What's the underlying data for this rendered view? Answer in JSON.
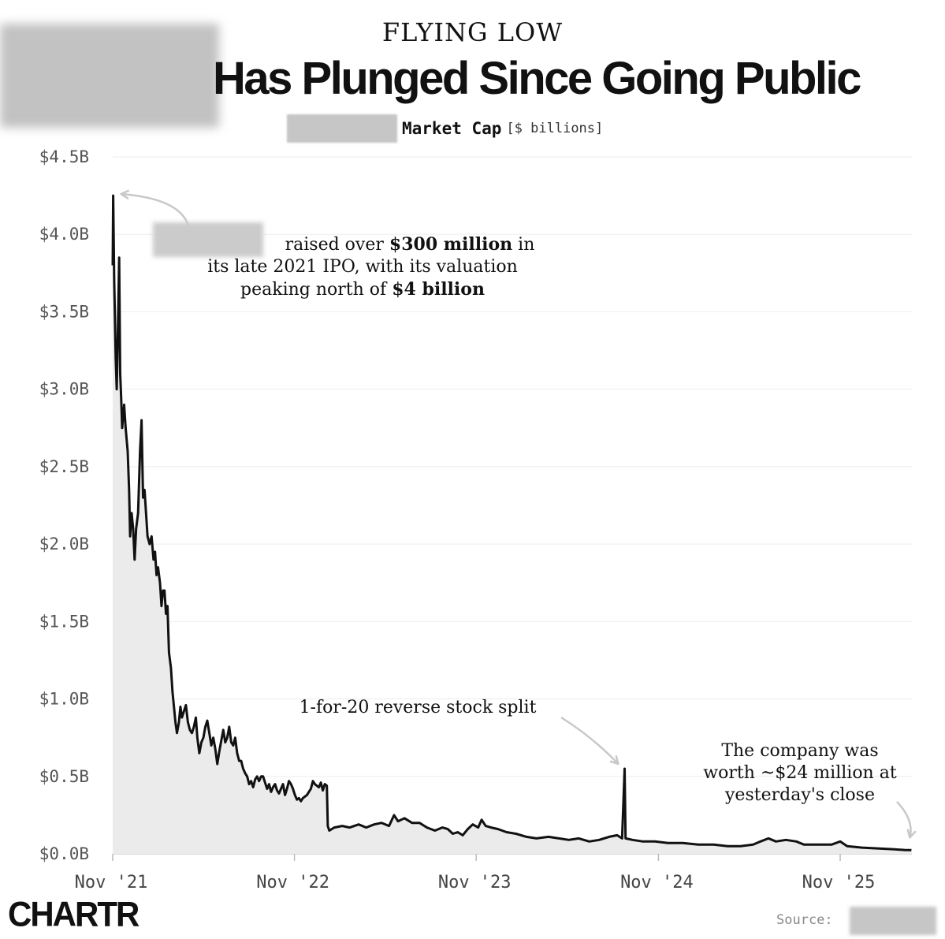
{
  "header": {
    "kicker": "FLYING LOW",
    "title": "Has Plunged Since Going Public",
    "subtitle_main": "Market Cap",
    "subtitle_unit": "[$ billions]"
  },
  "annotations": {
    "ipo_line1_text": "raised over ",
    "ipo_line1_bold": "$300 million",
    "ipo_line1_tail": " in",
    "ipo_line2": "its late 2021 IPO, with its valuation",
    "ipo_line3_text": "peaking north of ",
    "ipo_line3_bold": "$4 billion",
    "split": "1-for-20 reverse stock split",
    "now_line1": "The company was",
    "now_line2": "worth ~$24 million at",
    "now_line3": "yesterday's close"
  },
  "footer": {
    "brand": "CHARTR",
    "source_label": "Source:"
  },
  "colors": {
    "line": "#111111",
    "area": "#ebebeb",
    "grid": "#eeeeee",
    "arrow": "#c8c8c8"
  },
  "chart_data": {
    "type": "area",
    "title": "Has Plunged Since Going Public",
    "ylabel": "Market Cap [$ billions]",
    "ylim": [
      0,
      4.5
    ],
    "yticks": [
      0,
      0.5,
      1.0,
      1.5,
      2.0,
      2.5,
      3.0,
      3.5,
      4.0,
      4.5
    ],
    "ytick_labels": [
      "$0.0B",
      "$0.5B",
      "$1.0B",
      "$1.5B",
      "$2.0B",
      "$2.5B",
      "$3.0B",
      "$3.5B",
      "$4.0B",
      "$4.5B"
    ],
    "xlim": [
      "2021-11-01",
      "2026-03-25"
    ],
    "xticks": [
      "2021-11-01",
      "2022-11-01",
      "2023-11-01",
      "2024-11-01",
      "2025-11-01"
    ],
    "xtick_labels": [
      "Nov '21",
      "Nov '22",
      "Nov '23",
      "Nov '24",
      "Nov '25"
    ],
    "grid": true,
    "series": [
      {
        "points": [
          [
            "2021-11-01",
            3.8
          ],
          [
            "2021-11-02",
            4.25
          ],
          [
            "2021-11-04",
            3.7
          ],
          [
            "2021-11-07",
            3.2
          ],
          [
            "2021-11-09",
            3.0
          ],
          [
            "2021-11-11",
            3.3
          ],
          [
            "2021-11-14",
            3.85
          ],
          [
            "2021-11-16",
            3.1
          ],
          [
            "2021-11-18",
            2.95
          ],
          [
            "2021-11-20",
            2.75
          ],
          [
            "2021-11-24",
            2.9
          ],
          [
            "2021-11-27",
            2.75
          ],
          [
            "2021-12-01",
            2.6
          ],
          [
            "2021-12-04",
            2.35
          ],
          [
            "2021-12-06",
            2.05
          ],
          [
            "2021-12-09",
            2.2
          ],
          [
            "2021-12-12",
            2.1
          ],
          [
            "2021-12-15",
            1.9
          ],
          [
            "2021-12-18",
            2.1
          ],
          [
            "2021-12-22",
            2.2
          ],
          [
            "2021-12-26",
            2.6
          ],
          [
            "2021-12-29",
            2.8
          ],
          [
            "2022-01-01",
            2.3
          ],
          [
            "2022-01-04",
            2.35
          ],
          [
            "2022-01-07",
            2.2
          ],
          [
            "2022-01-10",
            2.05
          ],
          [
            "2022-01-14",
            2.0
          ],
          [
            "2022-01-18",
            2.05
          ],
          [
            "2022-01-22",
            1.9
          ],
          [
            "2022-01-25",
            1.95
          ],
          [
            "2022-01-28",
            1.8
          ],
          [
            "2022-01-31",
            1.85
          ],
          [
            "2022-02-04",
            1.75
          ],
          [
            "2022-02-07",
            1.6
          ],
          [
            "2022-02-10",
            1.7
          ],
          [
            "2022-02-13",
            1.7
          ],
          [
            "2022-02-16",
            1.55
          ],
          [
            "2022-02-19",
            1.6
          ],
          [
            "2022-02-22",
            1.3
          ],
          [
            "2022-02-26",
            1.2
          ],
          [
            "2022-03-01",
            1.05
          ],
          [
            "2022-03-04",
            0.95
          ],
          [
            "2022-03-07",
            0.85
          ],
          [
            "2022-03-10",
            0.78
          ],
          [
            "2022-03-14",
            0.85
          ],
          [
            "2022-03-17",
            0.95
          ],
          [
            "2022-03-20",
            0.88
          ],
          [
            "2022-03-24",
            0.92
          ],
          [
            "2022-03-28",
            0.96
          ],
          [
            "2022-04-01",
            0.85
          ],
          [
            "2022-04-05",
            0.8
          ],
          [
            "2022-04-09",
            0.78
          ],
          [
            "2022-04-13",
            0.82
          ],
          [
            "2022-04-17",
            0.88
          ],
          [
            "2022-04-20",
            0.75
          ],
          [
            "2022-04-24",
            0.65
          ],
          [
            "2022-04-28",
            0.72
          ],
          [
            "2022-05-02",
            0.75
          ],
          [
            "2022-05-06",
            0.82
          ],
          [
            "2022-05-10",
            0.86
          ],
          [
            "2022-05-14",
            0.78
          ],
          [
            "2022-05-18",
            0.7
          ],
          [
            "2022-05-22",
            0.75
          ],
          [
            "2022-05-26",
            0.68
          ],
          [
            "2022-05-30",
            0.58
          ],
          [
            "2022-06-03",
            0.66
          ],
          [
            "2022-06-07",
            0.73
          ],
          [
            "2022-06-11",
            0.8
          ],
          [
            "2022-06-15",
            0.72
          ],
          [
            "2022-06-19",
            0.75
          ],
          [
            "2022-06-23",
            0.82
          ],
          [
            "2022-06-27",
            0.72
          ],
          [
            "2022-07-01",
            0.7
          ],
          [
            "2022-07-05",
            0.75
          ],
          [
            "2022-07-09",
            0.65
          ],
          [
            "2022-07-13",
            0.6
          ],
          [
            "2022-07-17",
            0.6
          ],
          [
            "2022-07-21",
            0.55
          ],
          [
            "2022-07-25",
            0.52
          ],
          [
            "2022-07-29",
            0.5
          ],
          [
            "2022-08-02",
            0.45
          ],
          [
            "2022-08-06",
            0.47
          ],
          [
            "2022-08-10",
            0.43
          ],
          [
            "2022-08-14",
            0.48
          ],
          [
            "2022-08-18",
            0.5
          ],
          [
            "2022-08-22",
            0.47
          ],
          [
            "2022-08-26",
            0.5
          ],
          [
            "2022-08-30",
            0.5
          ],
          [
            "2022-09-03",
            0.46
          ],
          [
            "2022-09-07",
            0.42
          ],
          [
            "2022-09-11",
            0.45
          ],
          [
            "2022-09-15",
            0.4
          ],
          [
            "2022-09-19",
            0.43
          ],
          [
            "2022-09-23",
            0.45
          ],
          [
            "2022-09-27",
            0.41
          ],
          [
            "2022-10-01",
            0.39
          ],
          [
            "2022-10-05",
            0.42
          ],
          [
            "2022-10-09",
            0.45
          ],
          [
            "2022-10-13",
            0.38
          ],
          [
            "2022-10-17",
            0.42
          ],
          [
            "2022-10-21",
            0.47
          ],
          [
            "2022-10-25",
            0.45
          ],
          [
            "2022-10-29",
            0.42
          ],
          [
            "2022-11-02",
            0.38
          ],
          [
            "2022-11-06",
            0.35
          ],
          [
            "2022-11-10",
            0.36
          ],
          [
            "2022-11-14",
            0.34
          ],
          [
            "2022-11-18",
            0.36
          ],
          [
            "2022-11-22",
            0.37
          ],
          [
            "2022-11-26",
            0.38
          ],
          [
            "2022-11-30",
            0.4
          ],
          [
            "2022-12-04",
            0.42
          ],
          [
            "2022-12-08",
            0.47
          ],
          [
            "2022-12-12",
            0.45
          ],
          [
            "2022-12-16",
            0.44
          ],
          [
            "2022-12-20",
            0.43
          ],
          [
            "2022-12-24",
            0.46
          ],
          [
            "2022-12-28",
            0.41
          ],
          [
            "2023-01-01",
            0.45
          ],
          [
            "2023-01-05",
            0.44
          ],
          [
            "2023-01-07",
            0.18
          ],
          [
            "2023-01-10",
            0.15
          ],
          [
            "2023-01-20",
            0.17
          ],
          [
            "2023-02-05",
            0.18
          ],
          [
            "2023-02-20",
            0.17
          ],
          [
            "2023-03-10",
            0.19
          ],
          [
            "2023-03-25",
            0.17
          ],
          [
            "2023-04-10",
            0.19
          ],
          [
            "2023-04-25",
            0.2
          ],
          [
            "2023-05-10",
            0.18
          ],
          [
            "2023-05-20",
            0.25
          ],
          [
            "2023-05-28",
            0.21
          ],
          [
            "2023-06-10",
            0.23
          ],
          [
            "2023-06-25",
            0.2
          ],
          [
            "2023-07-10",
            0.2
          ],
          [
            "2023-07-25",
            0.17
          ],
          [
            "2023-08-10",
            0.15
          ],
          [
            "2023-08-25",
            0.17
          ],
          [
            "2023-09-05",
            0.16
          ],
          [
            "2023-09-15",
            0.13
          ],
          [
            "2023-09-25",
            0.14
          ],
          [
            "2023-10-05",
            0.12
          ],
          [
            "2023-10-15",
            0.16
          ],
          [
            "2023-10-25",
            0.19
          ],
          [
            "2023-11-05",
            0.17
          ],
          [
            "2023-11-12",
            0.22
          ],
          [
            "2023-11-20",
            0.18
          ],
          [
            "2023-12-01",
            0.17
          ],
          [
            "2023-12-15",
            0.16
          ],
          [
            "2024-01-01",
            0.14
          ],
          [
            "2024-01-20",
            0.13
          ],
          [
            "2024-02-10",
            0.11
          ],
          [
            "2024-03-01",
            0.1
          ],
          [
            "2024-03-25",
            0.11
          ],
          [
            "2024-04-15",
            0.1
          ],
          [
            "2024-05-05",
            0.09
          ],
          [
            "2024-05-25",
            0.1
          ],
          [
            "2024-06-15",
            0.08
          ],
          [
            "2024-07-05",
            0.09
          ],
          [
            "2024-07-25",
            0.11
          ],
          [
            "2024-08-10",
            0.12
          ],
          [
            "2024-08-20",
            0.1
          ],
          [
            "2024-08-25",
            0.55
          ],
          [
            "2024-08-27",
            0.1
          ],
          [
            "2024-09-10",
            0.09
          ],
          [
            "2024-10-01",
            0.08
          ],
          [
            "2024-10-25",
            0.08
          ],
          [
            "2024-11-20",
            0.07
          ],
          [
            "2024-12-20",
            0.07
          ],
          [
            "2025-01-20",
            0.06
          ],
          [
            "2025-02-20",
            0.06
          ],
          [
            "2025-03-20",
            0.05
          ],
          [
            "2025-04-15",
            0.05
          ],
          [
            "2025-05-10",
            0.06
          ],
          [
            "2025-05-25",
            0.08
          ],
          [
            "2025-06-10",
            0.1
          ],
          [
            "2025-06-25",
            0.08
          ],
          [
            "2025-07-15",
            0.09
          ],
          [
            "2025-08-05",
            0.08
          ],
          [
            "2025-08-20",
            0.06
          ],
          [
            "2025-09-15",
            0.06
          ],
          [
            "2025-10-15",
            0.06
          ],
          [
            "2025-11-01",
            0.08
          ],
          [
            "2025-11-15",
            0.05
          ],
          [
            "2025-12-15",
            0.04
          ],
          [
            "2026-01-15",
            0.035
          ],
          [
            "2026-02-15",
            0.03
          ],
          [
            "2026-03-10",
            0.025
          ],
          [
            "2026-03-24",
            0.024
          ]
        ]
      }
    ],
    "annotations": [
      {
        "date": "2021-11-02",
        "value": 4.25,
        "text": "raised over $300 million in its late 2021 IPO, with its valuation peaking north of $4 billion"
      },
      {
        "date": "2024-08-25",
        "value": 0.55,
        "text": "1-for-20 reverse stock split"
      },
      {
        "date": "2026-03-24",
        "value": 0.024,
        "text": "The company was worth ~$24 million at yesterday's close"
      }
    ]
  }
}
